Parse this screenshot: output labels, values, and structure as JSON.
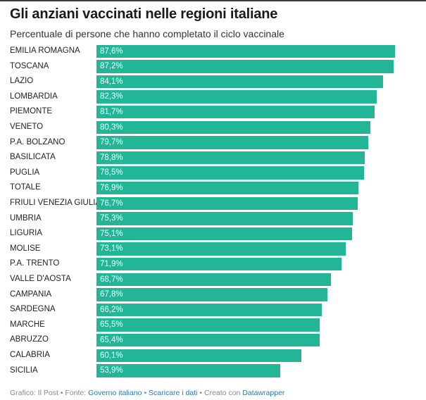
{
  "header": {
    "title": "Gli anziani vaccinati nelle regioni italiane",
    "subtitle": "Percentuale di persone che hanno completato il ciclo vaccinale"
  },
  "chart_data": {
    "type": "bar",
    "orientation": "horizontal",
    "title": "Gli anziani vaccinati nelle regioni italiane",
    "subtitle": "Percentuale di persone che hanno completato il ciclo vaccinale",
    "categories": [
      "EMILIA ROMAGNA",
      "TOSCANA",
      "LAZIO",
      "LOMBARDIA",
      "PIEMONTE",
      "VENETO",
      "P.A. BOLZANO",
      "BASILICATA",
      "PUGLIA",
      "TOTALE",
      "FRIULI VENEZIA GIULIA",
      "UMBRIA",
      "LIGURIA",
      "MOLISE",
      "P.A. TRENTO",
      "VALLE D'AOSTA",
      "CAMPANIA",
      "SARDEGNA",
      "MARCHE",
      "ABRUZZO",
      "CALABRIA",
      "SICILIA"
    ],
    "values": [
      87.6,
      87.2,
      84.1,
      82.3,
      81.7,
      80.3,
      79.7,
      78.8,
      78.5,
      76.9,
      76.7,
      75.3,
      75.1,
      73.1,
      71.9,
      68.7,
      67.8,
      66.2,
      65.5,
      65.4,
      60.1,
      53.9
    ],
    "value_labels": [
      "87,6%",
      "87,2%",
      "84,1%",
      "82,3%",
      "81,7%",
      "80,3%",
      "79,7%",
      "78,8%",
      "78,5%",
      "76,9%",
      "76,7%",
      "75,3%",
      "75,1%",
      "73,1%",
      "71,9%",
      "68,7%",
      "67,8%",
      "66,2%",
      "65,5%",
      "65,4%",
      "60,1%",
      "53,9%"
    ],
    "xlim": [
      0,
      87.6
    ],
    "grid": false,
    "legend": "none",
    "bar_color": "#22b697",
    "value_label_color": "#ffffff"
  },
  "footer": {
    "prefix": "Grafico: Il Post • Fonte: ",
    "source_link": "Governo italiano",
    "sep1": " • ",
    "download_link": "Scaricare i dati",
    "sep2": " • Creato con ",
    "tool_link": "Datawrapper"
  }
}
